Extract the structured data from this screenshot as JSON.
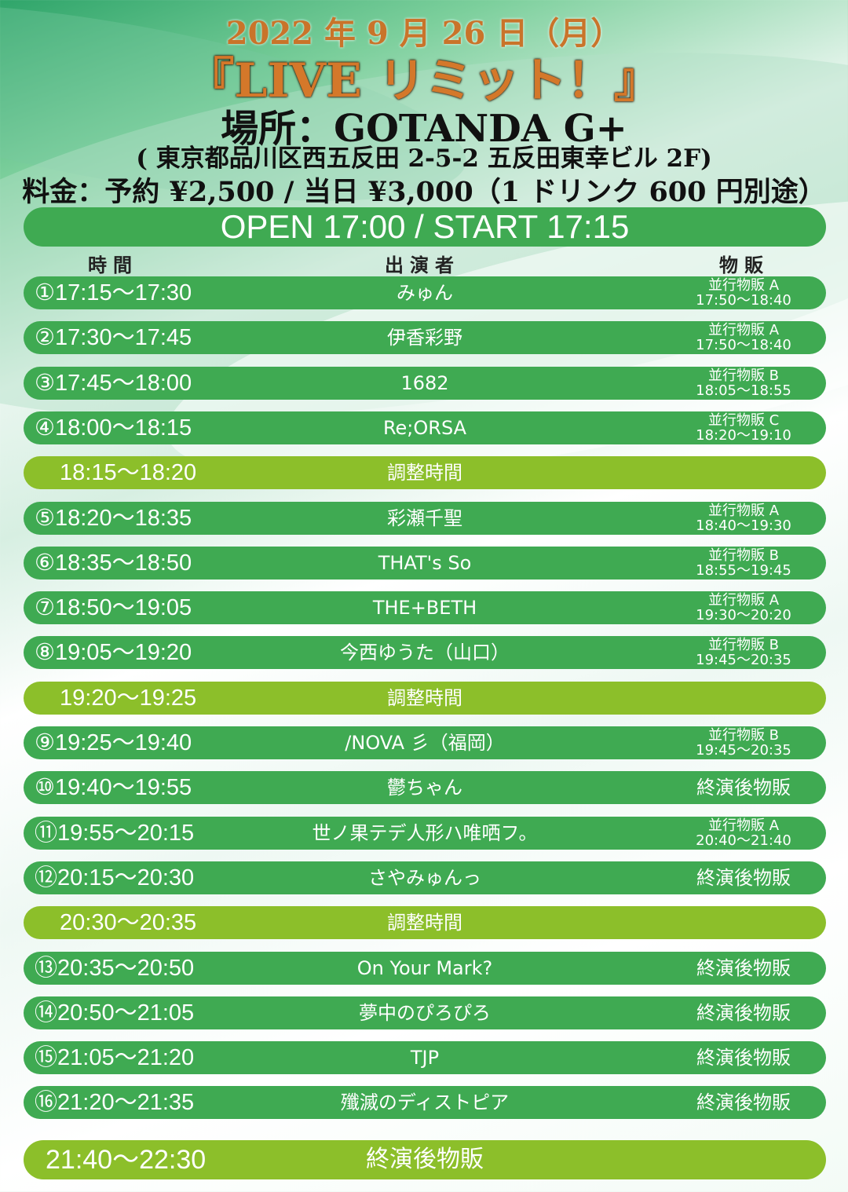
{
  "header": {
    "date": "2022 年 9 月 26 日（月）",
    "event": "『LIVE リミット！』",
    "venue": "場所：GOTANDA G+",
    "address": "( 東京都品川区西五反田 2-5-2 五反田東幸ビル 2F)",
    "price": "料金：予約 ¥2,500 / 当日 ¥3,000（1 ドリンク 600 円別途）"
  },
  "open_start": "OPEN 17:00 / START 17:15",
  "columns": {
    "time": "時間",
    "performer": "出演者",
    "merch": "物販"
  },
  "rows": [
    {
      "time": "①17:15〜17:30",
      "performer": "みゅん",
      "merch1": "並行物販 A",
      "merch2": "17:50〜18:40"
    },
    {
      "time": "②17:30〜17:45",
      "performer": "伊香彩野",
      "merch1": "並行物販 A",
      "merch2": "17:50〜18:40"
    },
    {
      "time": "③17:45〜18:00",
      "performer": "1682",
      "merch1": "並行物販 B",
      "merch2": "18:05〜18:55"
    },
    {
      "time": "④18:00〜18:15",
      "performer": "Re;ORSA",
      "merch1": "並行物販 C",
      "merch2": "18:20〜19:10"
    },
    {
      "time": "18:15〜18:20",
      "performer": "調整時間",
      "adj": true
    },
    {
      "time": "⑤18:20〜18:35",
      "performer": "彩瀬千聖",
      "merch1": "並行物販 A",
      "merch2": "18:40〜19:30"
    },
    {
      "time": "⑥18:35〜18:50",
      "performer": "THAT's So",
      "merch1": "並行物販 B",
      "merch2": "18:55〜19:45"
    },
    {
      "time": "⑦18:50〜19:05",
      "performer": "THE+BETH",
      "merch1": "並行物販 A",
      "merch2": "19:30〜20:20"
    },
    {
      "time": "⑧19:05〜19:20",
      "performer": "今西ゆうた（山口）",
      "merch1": "並行物販 B",
      "merch2": "19:45〜20:35"
    },
    {
      "time": "19:20〜19:25",
      "performer": "調整時間",
      "adj": true
    },
    {
      "time": "⑨19:25〜19:40",
      "performer": "/NOVA 彡（福岡）",
      "merch1": "並行物販 B",
      "merch2": "19:45〜20:35"
    },
    {
      "time": "⑩19:40〜19:55",
      "performer": "鬱ちゃん",
      "merch": "終演後物販"
    },
    {
      "time": "⑪19:55〜20:15",
      "performer": "世ノ果テデ人形ハ唯哂フ。",
      "merch1": "並行物販 A",
      "merch2": "20:40〜21:40"
    },
    {
      "time": "⑫20:15〜20:30",
      "performer": "さやみゅんっ",
      "merch": "終演後物販"
    },
    {
      "time": "20:30〜20:35",
      "performer": "調整時間",
      "adj": true
    },
    {
      "time": "⑬20:35〜20:50",
      "performer": "On Your Mark?",
      "merch": "終演後物販"
    },
    {
      "time": "⑭20:50〜21:05",
      "performer": "夢中のぴろぴろ",
      "merch": "終演後物販"
    },
    {
      "time": "⑮21:05〜21:20",
      "performer": "TJP",
      "merch": "終演後物販"
    },
    {
      "time": "⑯21:20〜21:35",
      "performer": "殲滅のディストピア",
      "merch": "終演後物販"
    }
  ],
  "final_row": {
    "time": "21:40〜22:30",
    "performer": "終演後物販"
  },
  "colors": {
    "row_green": "#3faa52",
    "adjust_green": "#8cbf2a",
    "title_orange": "#d4782a"
  }
}
